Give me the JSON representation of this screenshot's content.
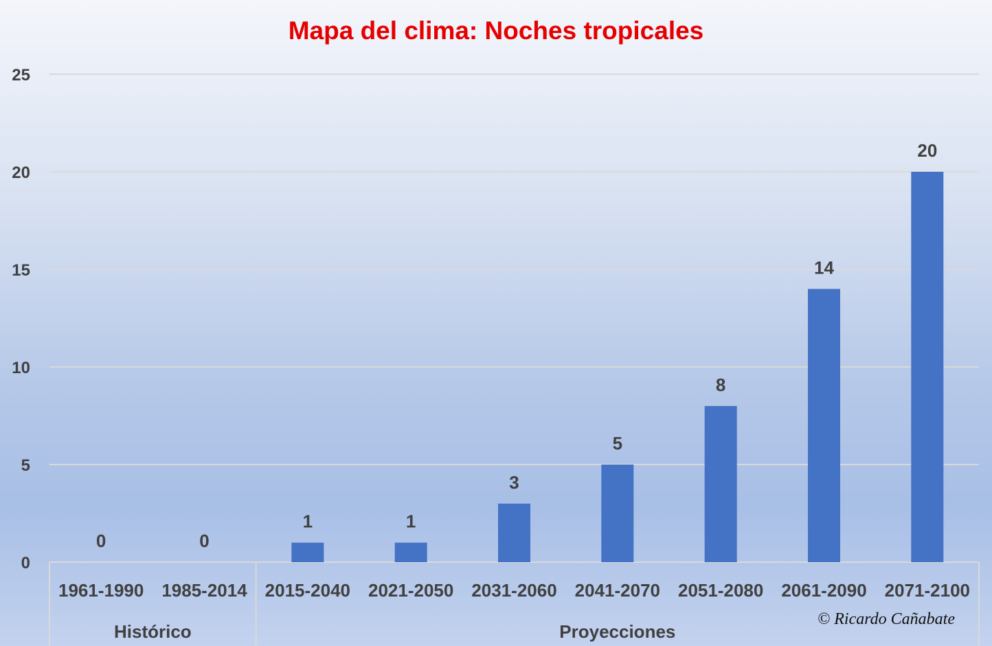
{
  "title": "Mapa del clima: Noches tropicales",
  "watermark": "© Ricardo Cañabate",
  "colors": {
    "bar": "#4472c4",
    "title": "#e60000",
    "text": "#404040",
    "grid": "#d9d9d9"
  },
  "chart_data": {
    "type": "bar",
    "title": "Mapa del clima: Noches tropicales",
    "xlabel": "",
    "ylabel": "",
    "ylim": [
      0,
      25
    ],
    "yticks": [
      0,
      5,
      10,
      15,
      20,
      25
    ],
    "grid": true,
    "categories": [
      "1961-1990",
      "1985-2014",
      "2015-2040",
      "2021-2050",
      "2031-2060",
      "2041-2070",
      "2051-2080",
      "2061-2090",
      "2071-2100"
    ],
    "values": [
      0,
      0,
      1,
      1,
      3,
      5,
      8,
      14,
      20
    ],
    "data_labels": [
      "0",
      "0",
      "1",
      "1",
      "3",
      "5",
      "8",
      "14",
      "20"
    ],
    "groups": [
      {
        "label": "Histórico",
        "count": 2
      },
      {
        "label": "Proyecciones",
        "count": 7
      }
    ]
  }
}
